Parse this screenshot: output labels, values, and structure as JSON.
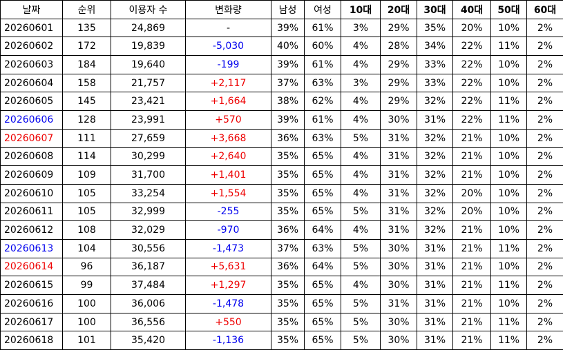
{
  "table": {
    "header": [
      "날짜",
      "순위",
      "이용자 수",
      "변화량",
      "남성",
      "여성",
      "10대",
      "20대",
      "30대",
      "40대",
      "50대",
      "60대"
    ],
    "rows": [
      [
        "20260601",
        "135",
        "24,869",
        "-",
        "39%",
        "61%",
        "3%",
        "29%",
        "35%",
        "20%",
        "10%",
        "2%"
      ],
      [
        "20260602",
        "172",
        "19,839",
        "-5,030",
        "40%",
        "60%",
        "4%",
        "28%",
        "34%",
        "22%",
        "11%",
        "2%"
      ],
      [
        "20260603",
        "184",
        "19,640",
        "-199",
        "39%",
        "61%",
        "4%",
        "29%",
        "33%",
        "22%",
        "10%",
        "2%"
      ],
      [
        "20260604",
        "158",
        "21,757",
        "+2,117",
        "37%",
        "63%",
        "3%",
        "29%",
        "33%",
        "22%",
        "10%",
        "2%"
      ],
      [
        "20260605",
        "145",
        "23,421",
        "+1,664",
        "38%",
        "62%",
        "4%",
        "29%",
        "32%",
        "22%",
        "11%",
        "2%"
      ],
      [
        "20260606",
        "128",
        "23,991",
        "+570",
        "39%",
        "61%",
        "4%",
        "30%",
        "31%",
        "22%",
        "11%",
        "2%"
      ],
      [
        "20260607",
        "111",
        "27,659",
        "+3,668",
        "36%",
        "63%",
        "5%",
        "31%",
        "32%",
        "21%",
        "10%",
        "2%"
      ],
      [
        "20260608",
        "114",
        "30,299",
        "+2,640",
        "35%",
        "65%",
        "4%",
        "31%",
        "32%",
        "21%",
        "10%",
        "2%"
      ],
      [
        "20260609",
        "109",
        "31,700",
        "+1,401",
        "35%",
        "65%",
        "4%",
        "31%",
        "32%",
        "21%",
        "10%",
        "2%"
      ],
      [
        "20260610",
        "105",
        "33,254",
        "+1,554",
        "35%",
        "65%",
        "4%",
        "31%",
        "32%",
        "20%",
        "10%",
        "2%"
      ],
      [
        "20260611",
        "105",
        "32,999",
        "-255",
        "35%",
        "65%",
        "5%",
        "31%",
        "32%",
        "20%",
        "10%",
        "2%"
      ],
      [
        "20260612",
        "108",
        "32,029",
        "-970",
        "36%",
        "64%",
        "4%",
        "31%",
        "32%",
        "21%",
        "10%",
        "2%"
      ],
      [
        "20260613",
        "104",
        "30,556",
        "-1,473",
        "37%",
        "63%",
        "5%",
        "30%",
        "31%",
        "21%",
        "11%",
        "2%"
      ],
      [
        "20260614",
        "96",
        "36,187",
        "+5,631",
        "36%",
        "64%",
        "5%",
        "30%",
        "31%",
        "21%",
        "10%",
        "2%"
      ],
      [
        "20260615",
        "99",
        "37,484",
        "+1,297",
        "35%",
        "65%",
        "4%",
        "30%",
        "31%",
        "21%",
        "11%",
        "2%"
      ],
      [
        "20260616",
        "100",
        "36,006",
        "-1,478",
        "35%",
        "65%",
        "5%",
        "31%",
        "31%",
        "21%",
        "10%",
        "2%"
      ],
      [
        "20260617",
        "100",
        "36,556",
        "+550",
        "35%",
        "65%",
        "5%",
        "30%",
        "31%",
        "21%",
        "11%",
        "2%"
      ],
      [
        "20260618",
        "101",
        "35,420",
        "-1,136",
        "35%",
        "65%",
        "5%",
        "30%",
        "31%",
        "21%",
        "11%",
        "2%"
      ]
    ]
  }
}
